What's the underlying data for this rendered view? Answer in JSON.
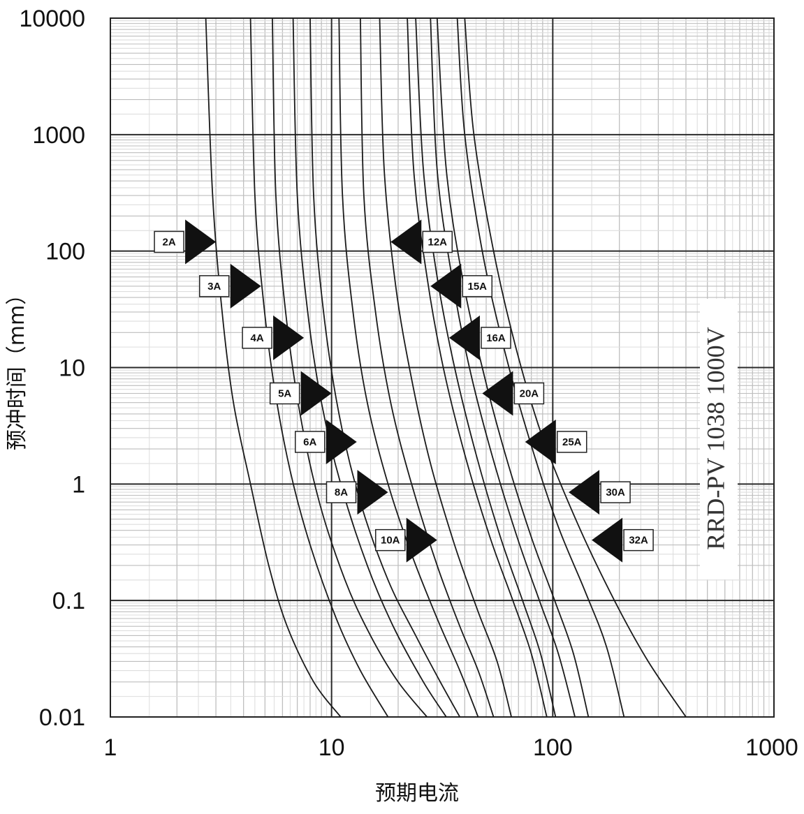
{
  "chart_data": {
    "type": "line",
    "xscale": "log",
    "yscale": "log",
    "xlim": [
      1,
      1000
    ],
    "ylim": [
      0.01,
      10000
    ],
    "grid": true,
    "xlabel": "预期电流",
    "ylabel": "预冲时间（mm）",
    "product_label": "RRD-PV 1038 1000V",
    "x_ticks": [
      1,
      10,
      100,
      1000
    ],
    "x_tick_labels": [
      "1",
      "10",
      "100",
      "1000"
    ],
    "y_ticks": [
      10000,
      1000,
      100,
      10,
      1,
      0.1,
      0.01
    ],
    "y_tick_labels": [
      "10000",
      "1000",
      "100",
      "10",
      "1",
      "0.1",
      "0.01"
    ],
    "series": [
      {
        "name": "2A",
        "points": [
          [
            2.7,
            10000
          ],
          [
            2.9,
            300
          ],
          [
            3.2,
            30
          ],
          [
            3.6,
            5
          ],
          [
            4.3,
            1
          ],
          [
            5.2,
            0.2
          ],
          [
            6.3,
            0.06
          ],
          [
            8.3,
            0.02
          ],
          [
            11,
            0.01
          ]
        ],
        "label_current": 3.0,
        "label_time": 120,
        "arrow": "right"
      },
      {
        "name": "3A",
        "points": [
          [
            4.3,
            10000
          ],
          [
            4.5,
            300
          ],
          [
            4.9,
            40
          ],
          [
            5.5,
            7
          ],
          [
            6.5,
            1.3
          ],
          [
            8.0,
            0.3
          ],
          [
            10.5,
            0.07
          ],
          [
            13.5,
            0.025
          ],
          [
            18,
            0.01
          ]
        ],
        "label_current": 4.8,
        "label_time": 50,
        "arrow": "right"
      },
      {
        "name": "4A",
        "points": [
          [
            5.4,
            10000
          ],
          [
            5.6,
            300
          ],
          [
            6.2,
            30
          ],
          [
            7.2,
            4
          ],
          [
            8.8,
            0.7
          ],
          [
            11.5,
            0.15
          ],
          [
            15,
            0.05
          ],
          [
            20,
            0.02
          ],
          [
            27,
            0.01
          ]
        ],
        "label_current": 7.5,
        "label_time": 18,
        "arrow": "right"
      },
      {
        "name": "5A",
        "points": [
          [
            6.7,
            10000
          ],
          [
            7.0,
            300
          ],
          [
            7.8,
            30
          ],
          [
            9.0,
            5
          ],
          [
            11,
            1
          ],
          [
            14.5,
            0.2
          ],
          [
            19,
            0.06
          ],
          [
            26,
            0.02
          ],
          [
            33,
            0.01
          ]
        ],
        "label_current": 10.0,
        "label_time": 6,
        "arrow": "right"
      },
      {
        "name": "6A",
        "points": [
          [
            8.0,
            10000
          ],
          [
            8.3,
            300
          ],
          [
            9.2,
            30
          ],
          [
            10.8,
            4
          ],
          [
            13.5,
            0.7
          ],
          [
            18,
            0.15
          ],
          [
            24,
            0.05
          ],
          [
            31,
            0.02
          ],
          [
            38,
            0.01
          ]
        ],
        "label_current": 13.0,
        "label_time": 2.3,
        "arrow": "right"
      },
      {
        "name": "8A",
        "points": [
          [
            10.8,
            10000
          ],
          [
            11.2,
            300
          ],
          [
            12.5,
            30
          ],
          [
            14.5,
            5
          ],
          [
            18,
            1
          ],
          [
            23,
            0.25
          ],
          [
            30,
            0.07
          ],
          [
            38,
            0.025
          ],
          [
            46,
            0.01
          ]
        ],
        "label_current": 18,
        "label_time": 0.85,
        "arrow": "right"
      },
      {
        "name": "10A",
        "points": [
          [
            13.5,
            10000
          ],
          [
            14,
            300
          ],
          [
            15.8,
            30
          ],
          [
            18.5,
            5
          ],
          [
            23,
            1
          ],
          [
            30,
            0.2
          ],
          [
            38,
            0.06
          ],
          [
            46,
            0.025
          ],
          [
            54,
            0.01
          ]
        ],
        "label_current": 30,
        "label_time": 0.33,
        "arrow": "right"
      },
      {
        "name": "12A",
        "points": [
          [
            16.5,
            10000
          ],
          [
            17.3,
            500
          ],
          [
            19.5,
            50
          ],
          [
            23,
            8
          ],
          [
            28,
            1.5
          ],
          [
            36,
            0.3
          ],
          [
            46,
            0.08
          ],
          [
            56,
            0.03
          ],
          [
            65,
            0.01
          ]
        ],
        "label_current": 18.5,
        "label_time": 120,
        "arrow": "left"
      },
      {
        "name": "15A",
        "points": [
          [
            22,
            10000
          ],
          [
            23.5,
            500
          ],
          [
            27,
            60
          ],
          [
            32,
            10
          ],
          [
            40,
            1.8
          ],
          [
            52,
            0.35
          ],
          [
            66,
            0.1
          ],
          [
            80,
            0.035
          ],
          [
            94,
            0.01
          ]
        ],
        "label_current": 28,
        "label_time": 50,
        "arrow": "left"
      },
      {
        "name": "16A",
        "points": [
          [
            24,
            10000
          ],
          [
            26,
            500
          ],
          [
            30,
            60
          ],
          [
            36,
            10
          ],
          [
            45,
            1.8
          ],
          [
            58,
            0.35
          ],
          [
            73,
            0.1
          ],
          [
            88,
            0.035
          ],
          [
            103,
            0.01
          ]
        ],
        "label_current": 34,
        "label_time": 18,
        "arrow": "left"
      },
      {
        "name": "20A",
        "points": [
          [
            28,
            10000
          ],
          [
            30,
            500
          ],
          [
            35,
            60
          ],
          [
            42,
            10
          ],
          [
            53,
            1.8
          ],
          [
            69,
            0.35
          ],
          [
            87,
            0.1
          ],
          [
            106,
            0.035
          ],
          [
            126,
            0.01
          ]
        ],
        "label_current": 48,
        "label_time": 6,
        "arrow": "left"
      },
      {
        "name": "25A",
        "points": [
          [
            30,
            10000
          ],
          [
            33,
            500
          ],
          [
            39,
            60
          ],
          [
            48,
            10
          ],
          [
            61,
            1.8
          ],
          [
            80,
            0.35
          ],
          [
            102,
            0.1
          ],
          [
            124,
            0.035
          ],
          [
            145,
            0.01
          ]
        ],
        "label_current": 75,
        "label_time": 2.3,
        "arrow": "left"
      },
      {
        "name": "30A",
        "points": [
          [
            37,
            10000
          ],
          [
            40,
            1000
          ],
          [
            48,
            100
          ],
          [
            60,
            15
          ],
          [
            78,
            2.5
          ],
          [
            105,
            0.45
          ],
          [
            140,
            0.12
          ],
          [
            175,
            0.04
          ],
          [
            210,
            0.01
          ]
        ],
        "label_current": 118,
        "label_time": 0.85,
        "arrow": "left"
      },
      {
        "name": "32A",
        "points": [
          [
            40,
            10000
          ],
          [
            44,
            1000
          ],
          [
            54,
            100
          ],
          [
            68,
            15
          ],
          [
            90,
            2.5
          ],
          [
            130,
            0.45
          ],
          [
            190,
            0.1
          ],
          [
            270,
            0.03
          ],
          [
            400,
            0.01
          ]
        ],
        "label_current": 150,
        "label_time": 0.33,
        "arrow": "left"
      }
    ]
  }
}
